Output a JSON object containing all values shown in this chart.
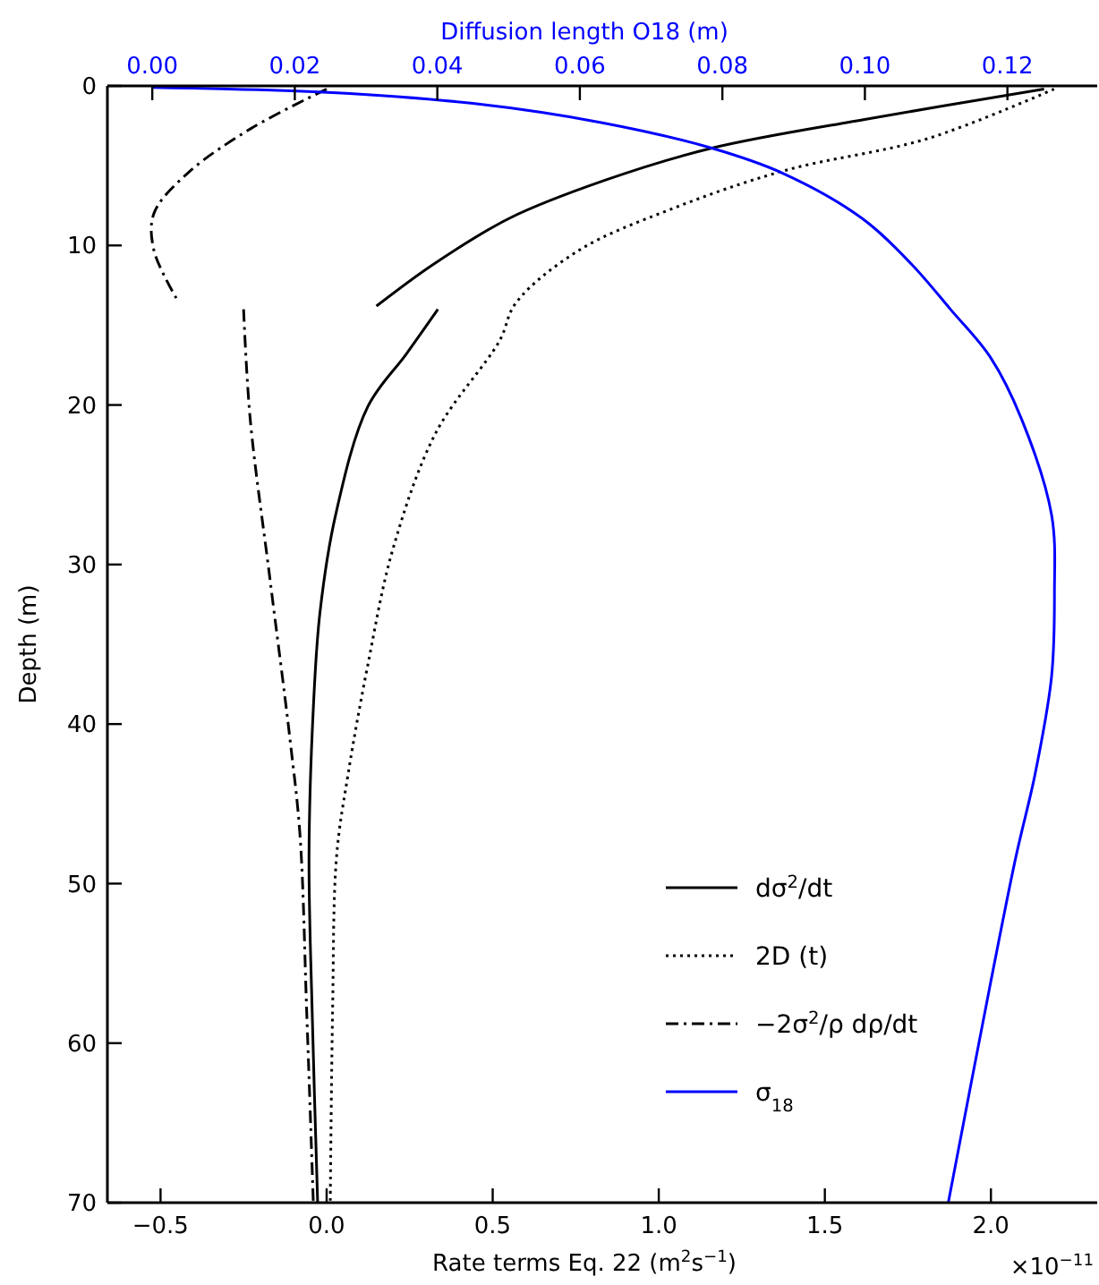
{
  "chart_data": {
    "type": "line",
    "xlabel": "Rate terms Eq. 22 (m$^{2}$s$^{−1}$)",
    "ylabel": "Depth (m)",
    "x2label": "Diffusion length O18 (m)",
    "xlim": [
      -0.66,
      2.32
    ],
    "xticks": [
      {
        "value": -0.5,
        "label": "−0.5"
      },
      {
        "value": 0,
        "label": "0.0"
      },
      0.5,
      {
        "value": 1,
        "label": "1.0"
      },
      1.5,
      {
        "value": 2,
        "label": "2.0"
      }
    ],
    "x2lim": [
      -0.0063,
      0.1326
    ],
    "x2ticks": [
      {
        "value": 0,
        "label": "0.00"
      },
      0.02,
      0.04,
      0.06,
      0.08,
      {
        "value": 0.1,
        "label": "0.10"
      },
      0.12
    ],
    "ylim": [
      70,
      0
    ],
    "yticks": [
      0,
      10,
      20,
      30,
      40,
      50,
      60,
      70
    ],
    "annotations": [
      "×10$^{−11}$"
    ],
    "legend": "bottom right",
    "grid": false,
    "series": [
      {
        "name": "dσ$^{2}$/dt",
        "color": "#000000",
        "line_style": "solid",
        "x": [
          2.16,
          1.62,
          1.16,
          0.84,
          0.55,
          0.32,
          0.15,
          0.2,
          0.335,
          0.24,
          0.124,
          0.027,
          -0.02,
          -0.04,
          -0.053,
          -0.043,
          -0.027
        ],
        "values": [
          0.2,
          2.1,
          3.9,
          5.9,
          8.3,
          11.2,
          13.8,
          null,
          14,
          16.8,
          20.1,
          26.9,
          33,
          39,
          48.3,
          58.4,
          70
        ]
      },
      {
        "name": "2D (t)",
        "color": "#000000",
        "line_style": "dotted",
        "x": [
          2.19,
          1.81,
          1.38,
          1.04,
          0.76,
          0.57,
          0.52,
          0.33,
          0.2,
          0.124,
          0.065,
          0.03,
          0.018,
          0.011
        ],
        "values": [
          0.2,
          3.3,
          5.3,
          7.7,
          10.3,
          13.6,
          16,
          21.7,
          29,
          36.3,
          43.1,
          48.3,
          58,
          70
        ]
      },
      {
        "name": "−2σ$^{2}$/ρ dρ/dt",
        "color": "#000000",
        "line_style": "dashdot",
        "x": [
          0.0,
          -0.23,
          -0.42,
          -0.52,
          -0.52,
          -0.45,
          -0.3,
          -0.25,
          -0.23,
          -0.17,
          -0.11,
          -0.08,
          -0.06,
          -0.04
        ],
        "values": [
          0.2,
          2.7,
          5.5,
          8,
          10.3,
          13.4,
          null,
          14,
          20.9,
          31,
          41,
          47,
          58,
          70
        ]
      },
      {
        "name": "σ$_{18}$",
        "color": "#0000ff",
        "line_style": "solid",
        "axis": "x2",
        "x": [
          0.0,
          0.0246,
          0.045,
          0.063,
          0.0785,
          0.0886,
          0.0996,
          0.1066,
          0.112,
          0.1176,
          0.122,
          0.1262,
          0.1266,
          0.1262,
          0.1239,
          0.1212,
          0.1176,
          0.1117
        ],
        "values": [
          0.1,
          0.4,
          1.1,
          2.3,
          3.9,
          5.5,
          8.3,
          11.2,
          14,
          17,
          20.9,
          26.9,
          31.8,
          37,
          43.1,
          48.3,
          56.3,
          70
        ]
      }
    ]
  }
}
